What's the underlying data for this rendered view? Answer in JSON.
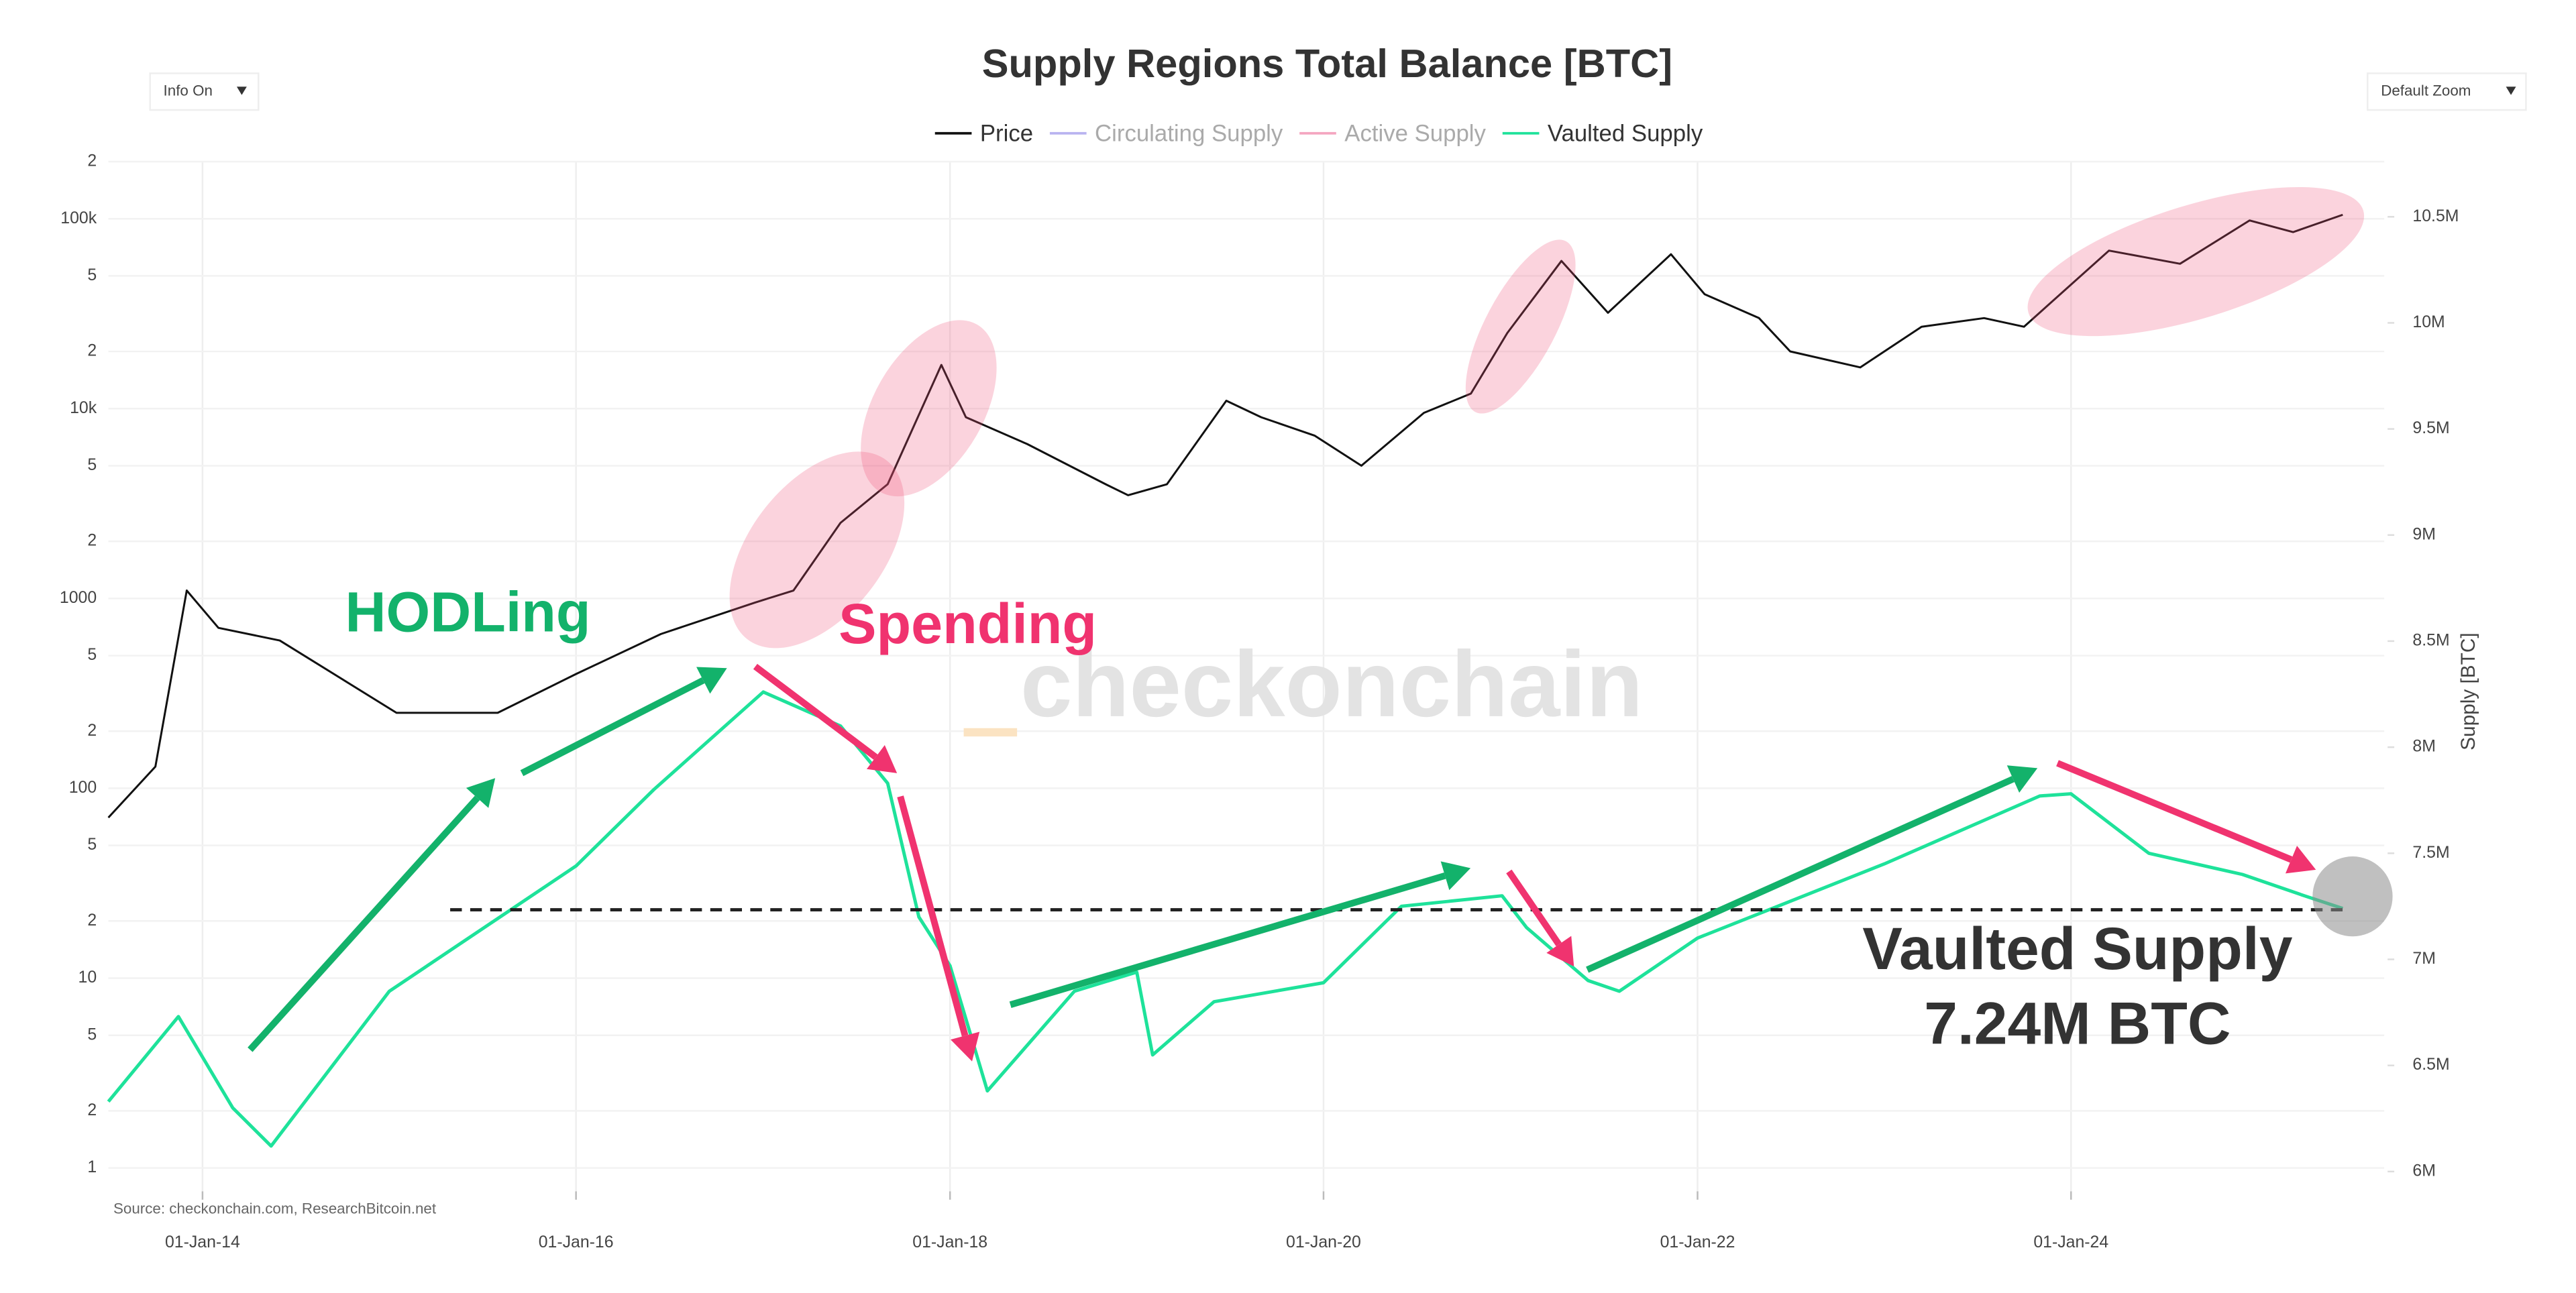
{
  "chart_data": {
    "type": "line",
    "title": "Supply Regions Total Balance [BTC]",
    "controls": {
      "info": "Info On",
      "zoom": "Default Zoom"
    },
    "y2_label": "Supply [BTC]",
    "source": "Source: checkonchain.com, ResearchBitcoin.net",
    "watermark": "checkonchain",
    "annotations": {
      "hodling": "HODLing",
      "spending": "Spending",
      "vaulted_title": "Vaulted Supply",
      "vaulted_value": "7.24M BTC"
    },
    "log_y": true,
    "grid": true,
    "legend": "top",
    "xlim": [
      "2013-07-01",
      "2025-07-01"
    ],
    "xticks": [
      {
        "value": "2014-01-01",
        "label": "01-Jan-14"
      },
      {
        "value": "2016-01-01",
        "label": "01-Jan-16"
      },
      {
        "value": "2018-01-01",
        "label": "01-Jan-18"
      },
      {
        "value": "2020-01-01",
        "label": "01-Jan-20"
      },
      {
        "value": "2022-01-01",
        "label": "01-Jan-22"
      },
      {
        "value": "2024-01-01",
        "label": "01-Jan-24"
      }
    ],
    "ylim": [
      0.8,
      200000
    ],
    "yticks": [
      1,
      2,
      5,
      10,
      {
        "value": 20,
        "label": "2"
      },
      {
        "value": 50,
        "label": "5"
      },
      100,
      {
        "value": 200,
        "label": "2"
      },
      {
        "value": 500,
        "label": "5"
      },
      1000,
      {
        "value": 2000,
        "label": "2"
      },
      {
        "value": 5000,
        "label": "5"
      },
      {
        "value": 10000,
        "label": "10k"
      },
      {
        "value": 20000,
        "label": "2"
      },
      {
        "value": 50000,
        "label": "5"
      },
      {
        "value": 100000,
        "label": "100k"
      },
      {
        "value": 200000,
        "label": "2"
      }
    ],
    "y2lim": [
      5930000,
      10760000
    ],
    "y2ticks": [
      {
        "value": 6000000,
        "label": "6M"
      },
      {
        "value": 6500000,
        "label": "6.5M"
      },
      {
        "value": 7000000,
        "label": "7M"
      },
      {
        "value": 7500000,
        "label": "7.5M"
      },
      {
        "value": 8000000,
        "label": "8M"
      },
      {
        "value": 8500000,
        "label": "8.5M"
      },
      {
        "value": 9000000,
        "label": "9M"
      },
      {
        "value": 9500000,
        "label": "9.5M"
      },
      {
        "value": 10000000,
        "label": "10M"
      },
      {
        "value": 10500000,
        "label": "10.5M"
      }
    ],
    "series": [
      {
        "name": "Price",
        "color": "#111111",
        "visible": true,
        "x": [
          "2013-07-01",
          "2013-10-01",
          "2013-12-01",
          "2014-02-01",
          "2014-06-01",
          "2015-01-15",
          "2015-08-01",
          "2016-01-01",
          "2016-06-15",
          "2016-12-15",
          "2017-03-01",
          "2017-06-01",
          "2017-09-01",
          "2017-12-15",
          "2018-02-01",
          "2018-06-01",
          "2018-11-01",
          "2018-12-15",
          "2019-03-01",
          "2019-06-25",
          "2019-09-01",
          "2019-12-15",
          "2020-03-15",
          "2020-07-15",
          "2020-10-15",
          "2020-12-25",
          "2021-04-10",
          "2021-07-10",
          "2021-11-10",
          "2022-01-15",
          "2022-05-01",
          "2022-07-01",
          "2022-11-15",
          "2023-03-15",
          "2023-07-15",
          "2023-10-01",
          "2024-03-15",
          "2024-08-01",
          "2024-12-15",
          "2025-03-10",
          "2025-06-15"
        ],
        "values": [
          70,
          130,
          1100,
          700,
          600,
          250,
          250,
          400,
          650,
          950,
          1100,
          2500,
          4000,
          17000,
          9000,
          6500,
          4000,
          3500,
          4000,
          11000,
          9000,
          7200,
          5000,
          9500,
          12000,
          25000,
          60000,
          32000,
          65000,
          40000,
          30000,
          20000,
          16500,
          27000,
          30000,
          27000,
          68000,
          58000,
          98000,
          85000,
          105000
        ]
      },
      {
        "name": "Circulating Supply",
        "color": "#b9b3f0",
        "visible": false
      },
      {
        "name": "Active Supply",
        "color": "#f4a6c0",
        "visible": false
      },
      {
        "name": "Vaulted Supply",
        "color": "#1ee29a",
        "visible": true,
        "axis": "y2",
        "x": [
          "2013-07-01",
          "2013-11-15",
          "2014-03-01",
          "2014-05-15",
          "2015-01-01",
          "2016-01-01",
          "2016-06-01",
          "2017-01-01",
          "2017-06-01",
          "2017-09-01",
          "2017-11-01",
          "2018-01-01",
          "2018-03-15",
          "2018-09-01",
          "2019-01-01",
          "2019-02-01",
          "2019-06-01",
          "2020-01-01",
          "2020-06-01",
          "2020-12-15",
          "2021-02-01",
          "2021-06-01",
          "2021-08-01",
          "2022-01-01",
          "2023-01-01",
          "2023-11-01",
          "2024-01-01",
          "2024-06-01",
          "2024-12-01",
          "2025-04-01",
          "2025-06-15"
        ],
        "values": [
          6330000,
          6730000,
          6300000,
          6120000,
          6850000,
          7440000,
          7800000,
          8260000,
          8100000,
          7830000,
          7200000,
          6970000,
          6380000,
          6850000,
          6940000,
          6550000,
          6800000,
          6890000,
          7250000,
          7300000,
          7150000,
          6900000,
          6850000,
          7100000,
          7450000,
          7770000,
          7780000,
          7500000,
          7400000,
          7300000,
          7240000
        ]
      }
    ]
  }
}
